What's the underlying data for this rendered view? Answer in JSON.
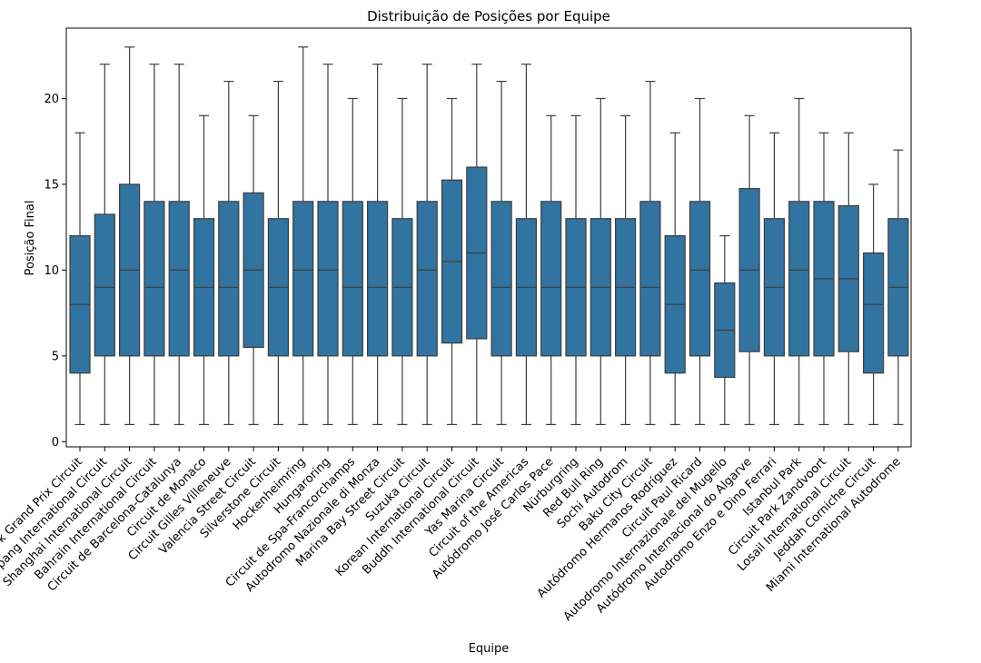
{
  "chart_data": {
    "type": "box",
    "title": "Distribuição de Posições por Equipe",
    "xlabel": "Equipe",
    "ylabel": "Posição Final",
    "ylim": [
      -0.3,
      24.1
    ],
    "yticks": [
      0,
      5,
      10,
      15,
      20
    ],
    "grid": false,
    "legend": false,
    "box_color": "#3274a1",
    "line_color": "#3d3d3d",
    "categories": [
      "Albert Park Grand Prix Circuit",
      "Sepang International Circuit",
      "Shanghai International Circuit",
      "Bahrain International Circuit",
      "Circuit de Barcelona-Catalunya",
      "Circuit de Monaco",
      "Circuit Gilles Villeneuve",
      "Valencia Street Circuit",
      "Silverstone Circuit",
      "Hockenheimring",
      "Hungaroring",
      "Circuit de Spa-Francorchamps",
      "Autodromo Nazionale di Monza",
      "Marina Bay Street Circuit",
      "Suzuka Circuit",
      "Korean International Circuit",
      "Buddh International Circuit",
      "Yas Marina Circuit",
      "Circuit of the Americas",
      "Autódromo José Carlos Pace",
      "Nürburgring",
      "Red Bull Ring",
      "Sochi Autodrom",
      "Baku City Circuit",
      "Autódromo Hermanos Rodríguez",
      "Circuit Paul Ricard",
      "Autodromo Internazionale del Mugello",
      "Autódromo Internacional do Algarve",
      "Autodromo Enzo e Dino Ferrari",
      "Istanbul Park",
      "Circuit Park Zandvoort",
      "Losail International Circuit",
      "Jeddah Corniche Circuit",
      "Miami International Autodrome"
    ],
    "boxes": [
      {
        "min": 1,
        "q1": 4,
        "median": 8,
        "q3": 12,
        "max": 18
      },
      {
        "min": 1,
        "q1": 5,
        "median": 9,
        "q3": 13.25,
        "max": 22
      },
      {
        "min": 1,
        "q1": 5,
        "median": 10,
        "q3": 15,
        "max": 23
      },
      {
        "min": 1,
        "q1": 5,
        "median": 9,
        "q3": 14,
        "max": 22
      },
      {
        "min": 1,
        "q1": 5,
        "median": 10,
        "q3": 14,
        "max": 22
      },
      {
        "min": 1,
        "q1": 5,
        "median": 9,
        "q3": 13,
        "max": 19
      },
      {
        "min": 1,
        "q1": 5,
        "median": 9,
        "q3": 14,
        "max": 21
      },
      {
        "min": 1,
        "q1": 5.5,
        "median": 10,
        "q3": 14.5,
        "max": 19
      },
      {
        "min": 1,
        "q1": 5,
        "median": 9,
        "q3": 13,
        "max": 21
      },
      {
        "min": 1,
        "q1": 5,
        "median": 10,
        "q3": 14,
        "max": 23
      },
      {
        "min": 1,
        "q1": 5,
        "median": 10,
        "q3": 14,
        "max": 22
      },
      {
        "min": 1,
        "q1": 5,
        "median": 9,
        "q3": 14,
        "max": 20
      },
      {
        "min": 1,
        "q1": 5,
        "median": 9,
        "q3": 14,
        "max": 22
      },
      {
        "min": 1,
        "q1": 5,
        "median": 9,
        "q3": 13,
        "max": 20
      },
      {
        "min": 1,
        "q1": 5,
        "median": 10,
        "q3": 14,
        "max": 22
      },
      {
        "min": 1,
        "q1": 5.75,
        "median": 10.5,
        "q3": 15.25,
        "max": 20
      },
      {
        "min": 1,
        "q1": 6,
        "median": 11,
        "q3": 16,
        "max": 22
      },
      {
        "min": 1,
        "q1": 5,
        "median": 9,
        "q3": 14,
        "max": 21
      },
      {
        "min": 1,
        "q1": 5,
        "median": 9,
        "q3": 13,
        "max": 22
      },
      {
        "min": 1,
        "q1": 5,
        "median": 9,
        "q3": 14,
        "max": 19
      },
      {
        "min": 1,
        "q1": 5,
        "median": 9,
        "q3": 13,
        "max": 19
      },
      {
        "min": 1,
        "q1": 5,
        "median": 9,
        "q3": 13,
        "max": 20
      },
      {
        "min": 1,
        "q1": 5,
        "median": 9,
        "q3": 13,
        "max": 19
      },
      {
        "min": 1,
        "q1": 5,
        "median": 9,
        "q3": 14,
        "max": 21
      },
      {
        "min": 1,
        "q1": 4,
        "median": 8,
        "q3": 12,
        "max": 18
      },
      {
        "min": 1,
        "q1": 5,
        "median": 10,
        "q3": 14,
        "max": 20
      },
      {
        "min": 1,
        "q1": 3.75,
        "median": 6.5,
        "q3": 9.25,
        "max": 12
      },
      {
        "min": 1,
        "q1": 5.25,
        "median": 10,
        "q3": 14.75,
        "max": 19
      },
      {
        "min": 1,
        "q1": 5,
        "median": 9,
        "q3": 13,
        "max": 18
      },
      {
        "min": 1,
        "q1": 5,
        "median": 10,
        "q3": 14,
        "max": 20
      },
      {
        "min": 1,
        "q1": 5,
        "median": 9.5,
        "q3": 14,
        "max": 18
      },
      {
        "min": 1,
        "q1": 5.25,
        "median": 9.5,
        "q3": 13.75,
        "max": 18
      },
      {
        "min": 1,
        "q1": 4,
        "median": 8,
        "q3": 11,
        "max": 15
      },
      {
        "min": 1,
        "q1": 5,
        "median": 9,
        "q3": 13,
        "max": 17
      }
    ]
  }
}
